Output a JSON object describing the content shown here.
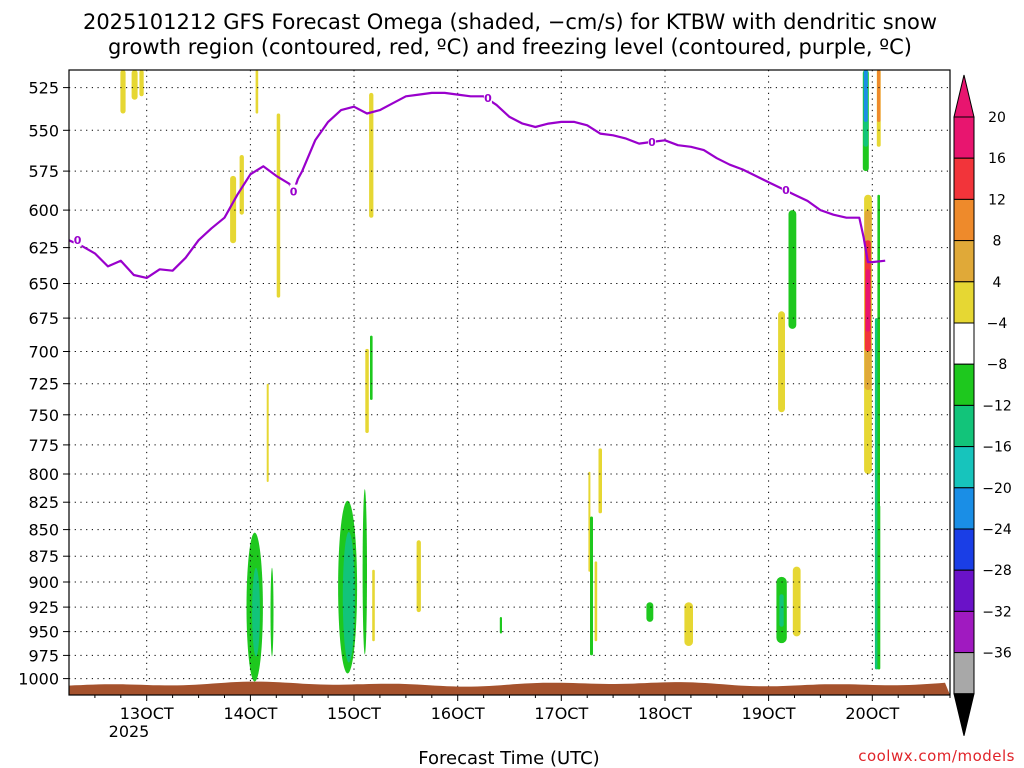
{
  "chart_data": {
    "type": "heatmap",
    "title_line1": "2025101212 GFS Forecast Omega (shaded, −cm/s) for KTBW with dendritic snow",
    "title_line2": "growth region (contoured, red, ºC) and freezing level (contoured, purple, ºC)",
    "xlabel": "Forecast Time (UTC)",
    "credit": "coolwx.com/models",
    "x_unit": "hours since 12Z 12 Oct 2025",
    "xlim": [
      -6,
      198
    ],
    "x_ticks": [
      {
        "t": 12,
        "label": "13OCT"
      },
      {
        "t": 36,
        "label": "14OCT"
      },
      {
        "t": 60,
        "label": "15OCT"
      },
      {
        "t": 84,
        "label": "16OCT"
      },
      {
        "t": 108,
        "label": "17OCT"
      },
      {
        "t": 132,
        "label": "18OCT"
      },
      {
        "t": 156,
        "label": "19OCT"
      },
      {
        "t": 180,
        "label": "20OCT"
      }
    ],
    "year_label": "2025",
    "y_ticks": [
      "525",
      "550",
      "575",
      "600",
      "625",
      "650",
      "675",
      "700",
      "725",
      "750",
      "775",
      "800",
      "825",
      "850",
      "875",
      "900",
      "925",
      "950",
      "975",
      "1000"
    ],
    "ylim_hpa": [
      515,
      1018
    ],
    "colorbar": {
      "labels": [
        "20",
        "16",
        "12",
        "8",
        "4",
        "−4",
        "−8",
        "−12",
        "−16",
        "−20",
        "−24",
        "−28",
        "−32",
        "−36"
      ],
      "colors": [
        "#e8156f",
        "#f2343a",
        "#ee8a2b",
        "#e0a938",
        "#e6d733",
        "#ffffff",
        "#1ec81e",
        "#12c47a",
        "#17c4bc",
        "#1a8ee6",
        "#1a3ee6",
        "#6a12c8",
        "#a01ac0",
        "#a8a8a8"
      ],
      "top_arrow_color": "#e8156f",
      "bottom_arrow_color": "#000000"
    },
    "freezing_level": {
      "label": "0",
      "points": [
        [
          -6,
          620
        ],
        [
          -3,
          624
        ],
        [
          0,
          629
        ],
        [
          3,
          638
        ],
        [
          6,
          634
        ],
        [
          9,
          644
        ],
        [
          12,
          646
        ],
        [
          15,
          640
        ],
        [
          18,
          641
        ],
        [
          21,
          632
        ],
        [
          24,
          620
        ],
        [
          27,
          612
        ],
        [
          30,
          605
        ],
        [
          33,
          590
        ],
        [
          36,
          577
        ],
        [
          39,
          572
        ],
        [
          42,
          578
        ],
        [
          45,
          583
        ],
        [
          46,
          588
        ],
        [
          47,
          580
        ],
        [
          48,
          575
        ],
        [
          51,
          556
        ],
        [
          54,
          545
        ],
        [
          57,
          538
        ],
        [
          60,
          536
        ],
        [
          63,
          540
        ],
        [
          66,
          538
        ],
        [
          69,
          534
        ],
        [
          72,
          530
        ],
        [
          75,
          529
        ],
        [
          78,
          528
        ],
        [
          81,
          528
        ],
        [
          84,
          529
        ],
        [
          87,
          530
        ],
        [
          90,
          530
        ],
        [
          93,
          535
        ],
        [
          96,
          542
        ],
        [
          99,
          546
        ],
        [
          102,
          548
        ],
        [
          105,
          546
        ],
        [
          108,
          545
        ],
        [
          111,
          545
        ],
        [
          114,
          547
        ],
        [
          117,
          552
        ],
        [
          120,
          553
        ],
        [
          123,
          555
        ],
        [
          126,
          558
        ],
        [
          129,
          557
        ],
        [
          132,
          556
        ],
        [
          135,
          559
        ],
        [
          138,
          560
        ],
        [
          141,
          562
        ],
        [
          144,
          567
        ],
        [
          147,
          571
        ],
        [
          150,
          574
        ],
        [
          153,
          578
        ],
        [
          156,
          582
        ],
        [
          159,
          586
        ],
        [
          162,
          590
        ],
        [
          165,
          594
        ],
        [
          168,
          600
        ],
        [
          171,
          603
        ],
        [
          174,
          605
        ],
        [
          177,
          605
        ],
        [
          178,
          618
        ],
        [
          179,
          635
        ],
        [
          180,
          635
        ],
        [
          183,
          634
        ]
      ]
    },
    "omega_patches": [
      {
        "t": 6.5,
        "p0": 515,
        "p1": 540,
        "w": 0.6,
        "color": "#e6d733"
      },
      {
        "t": 9.2,
        "p0": 515,
        "p1": 532,
        "w": 0.7,
        "color": "#e6d733"
      },
      {
        "t": 10.8,
        "p0": 515,
        "p1": 530,
        "w": 0.5,
        "color": "#e6d733"
      },
      {
        "t": 32.0,
        "p0": 578,
        "p1": 622,
        "w": 0.7,
        "color": "#e6d733"
      },
      {
        "t": 34.0,
        "p0": 565,
        "p1": 603,
        "w": 0.5,
        "color": "#e6d733"
      },
      {
        "t": 37.5,
        "p0": 515,
        "p1": 540,
        "w": 0.3,
        "color": "#e6d733"
      },
      {
        "t": 40.0,
        "p0": 725,
        "p1": 807,
        "w": 0.2,
        "color": "#e6d733"
      },
      {
        "t": 42.5,
        "p0": 540,
        "p1": 660,
        "w": 0.4,
        "color": "#e6d733"
      },
      {
        "t": 64.0,
        "p0": 528,
        "p1": 605,
        "w": 0.5,
        "color": "#e6d733"
      },
      {
        "t": 63.0,
        "p0": 698,
        "p1": 765,
        "w": 0.4,
        "color": "#e6d733"
      },
      {
        "t": 64.0,
        "p0": 688,
        "p1": 738,
        "w": 0.3,
        "color": "#1ec81e"
      },
      {
        "t": 75.0,
        "p0": 860,
        "p1": 930,
        "w": 0.5,
        "color": "#e6d733"
      },
      {
        "t": 64.5,
        "p0": 888,
        "p1": 960,
        "w": 0.3,
        "color": "#e6d733"
      },
      {
        "t": 94.0,
        "p0": 935,
        "p1": 952,
        "w": 0.25,
        "color": "#1ec81e"
      },
      {
        "t": 114.5,
        "p0": 798,
        "p1": 890,
        "w": 0.2,
        "color": "#e6d733"
      },
      {
        "t": 115.0,
        "p0": 838,
        "p1": 975,
        "w": 0.35,
        "color": "#1ec81e"
      },
      {
        "t": 117.0,
        "p0": 778,
        "p1": 835,
        "w": 0.4,
        "color": "#e6d733"
      },
      {
        "t": 116.0,
        "p0": 880,
        "p1": 960,
        "w": 0.3,
        "color": "#e6d733"
      },
      {
        "t": 128.5,
        "p0": 920,
        "p1": 940,
        "w": 0.8,
        "color": "#1ec81e"
      },
      {
        "t": 137.5,
        "p0": 920,
        "p1": 965,
        "w": 1.0,
        "color": "#e6d733"
      },
      {
        "t": 159.0,
        "p0": 670,
        "p1": 748,
        "w": 0.8,
        "color": "#e6d733"
      },
      {
        "t": 161.5,
        "p0": 600,
        "p1": 683,
        "w": 0.9,
        "color": "#1ec81e"
      },
      {
        "t": 159.0,
        "p0": 895,
        "p1": 962,
        "w": 1.2,
        "color": "#1ec81e"
      },
      {
        "t": 159.0,
        "p0": 912,
        "p1": 945,
        "w": 0.5,
        "color": "#12c47a"
      },
      {
        "t": 162.5,
        "p0": 885,
        "p1": 955,
        "w": 0.9,
        "color": "#e6d733"
      },
      {
        "t": 178.5,
        "p0": 515,
        "p1": 575,
        "w": 0.7,
        "color": "#1ec81e"
      },
      {
        "t": 178.5,
        "p0": 515,
        "p1": 560,
        "w": 0.55,
        "color": "#12c47a"
      },
      {
        "t": 178.5,
        "p0": 515,
        "p1": 545,
        "w": 0.45,
        "color": "#1a8ee6"
      },
      {
        "t": 181.5,
        "p0": 515,
        "p1": 560,
        "w": 0.45,
        "color": "#e6d733"
      },
      {
        "t": 181.5,
        "p0": 515,
        "p1": 545,
        "w": 0.4,
        "color": "#ee8a2b"
      },
      {
        "t": 179.0,
        "p0": 590,
        "p1": 800,
        "w": 0.9,
        "color": "#e6d733"
      },
      {
        "t": 179.0,
        "p0": 600,
        "p1": 730,
        "w": 0.8,
        "color": "#e0a938"
      },
      {
        "t": 179.0,
        "p0": 620,
        "p1": 700,
        "w": 0.7,
        "color": "#f2343a"
      },
      {
        "t": 179.0,
        "p0": 640,
        "p1": 685,
        "w": 0.5,
        "color": "#e8156f"
      },
      {
        "t": 181.0,
        "p0": 675,
        "p1": 990,
        "w": 0.4,
        "color": "#12c47a"
      },
      {
        "t": 181.5,
        "p0": 590,
        "p1": 990,
        "w": 0.3,
        "color": "#1ec81e"
      },
      {
        "t": 181.6,
        "p0": 828,
        "p1": 990,
        "w": 0.25,
        "color": "#1ec81e"
      }
    ],
    "omega_blobs": [
      {
        "t": 37.0,
        "pc": 925,
        "rw": 1.9,
        "rp": 75,
        "color": "#1ec81e"
      },
      {
        "t": 37.3,
        "pc": 930,
        "rw": 0.9,
        "rp": 45,
        "color": "#12c47a"
      },
      {
        "t": 41.0,
        "pc": 930,
        "rw": 0.35,
        "rp": 45,
        "color": "#1ec81e"
      },
      {
        "t": 58.5,
        "pc": 905,
        "rw": 2.2,
        "rp": 85,
        "color": "#1ec81e"
      },
      {
        "t": 58.8,
        "pc": 915,
        "rw": 1.4,
        "rp": 65,
        "color": "#12c47a"
      },
      {
        "t": 62.5,
        "pc": 890,
        "rw": 0.5,
        "rp": 80,
        "color": "#1ec81e"
      }
    ],
    "terrain": {
      "color": "#a5522d",
      "top_hpa": 1006
    }
  }
}
